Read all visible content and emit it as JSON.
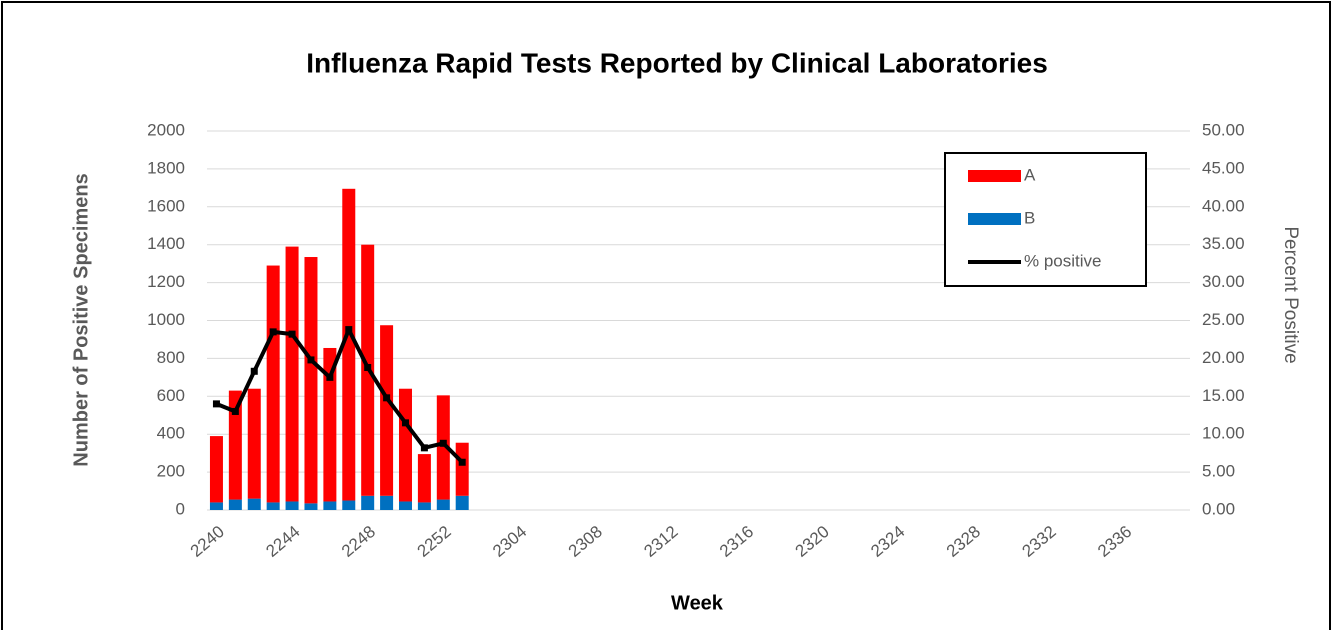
{
  "chart_data": {
    "type": "bar",
    "stacked": true,
    "title": "Influenza Rapid Tests Reported by Clinical Laboratories",
    "x_label": "Week",
    "y_label": "Number of Positive Specimens",
    "y2_label": "Percent Positive",
    "categories": [
      "2240",
      null,
      null,
      null,
      "2244",
      null,
      null,
      null,
      "2248",
      null,
      null,
      null,
      "2252",
      null,
      null,
      null,
      "2304",
      null,
      null,
      null,
      "2308",
      null,
      null,
      null,
      "2312",
      null,
      null,
      null,
      "2316",
      null,
      null,
      null,
      "2320",
      null,
      null,
      null,
      "2324",
      null,
      null,
      null,
      "2328",
      null,
      null,
      null,
      "2332",
      null,
      null,
      null,
      "2336",
      null,
      null,
      null
    ],
    "series": [
      {
        "name": "A",
        "color": "#ff0000",
        "type": "bar",
        "values": [
          350,
          575,
          580,
          1250,
          1345,
          1300,
          810,
          1645,
          1325,
          900,
          595,
          255,
          550,
          280,
          null,
          null,
          null,
          null,
          null,
          null,
          null,
          null,
          null,
          null,
          null,
          null,
          null,
          null,
          null,
          null,
          null,
          null,
          null,
          null,
          null,
          null,
          null,
          null,
          null,
          null,
          null,
          null,
          null,
          null,
          null,
          null,
          null,
          null,
          null,
          null,
          null,
          null
        ]
      },
      {
        "name": "B",
        "color": "#0070c0",
        "type": "bar",
        "values": [
          40,
          55,
          60,
          40,
          45,
          35,
          45,
          50,
          75,
          75,
          45,
          40,
          55,
          75,
          null,
          null,
          null,
          null,
          null,
          null,
          null,
          null,
          null,
          null,
          null,
          null,
          null,
          null,
          null,
          null,
          null,
          null,
          null,
          null,
          null,
          null,
          null,
          null,
          null,
          null,
          null,
          null,
          null,
          null,
          null,
          null,
          null,
          null,
          null,
          null,
          null,
          null
        ]
      },
      {
        "name": "% positive",
        "color": "#000000",
        "type": "line",
        "axis": "y2",
        "values": [
          14.0,
          13.0,
          18.3,
          23.5,
          23.2,
          19.8,
          17.5,
          23.8,
          18.8,
          14.8,
          11.5,
          8.2,
          8.8,
          6.3,
          null,
          null,
          null,
          null,
          null,
          null,
          null,
          null,
          null,
          null,
          null,
          null,
          null,
          null,
          null,
          null,
          null,
          null,
          null,
          null,
          null,
          null,
          null,
          null,
          null,
          null,
          null,
          null,
          null,
          null,
          null,
          null,
          null,
          null,
          null,
          null,
          null,
          null
        ]
      }
    ],
    "ylim": [
      0,
      2000
    ],
    "yticks": [
      0,
      200,
      400,
      600,
      800,
      1000,
      1200,
      1400,
      1600,
      1800,
      2000
    ],
    "y2lim": [
      0,
      50
    ],
    "y2ticks": [
      {
        "value": 0,
        "label": "0.00"
      },
      {
        "value": 5,
        "label": "5.00"
      },
      {
        "value": 10,
        "label": "10.00"
      },
      {
        "value": 15,
        "label": "15.00"
      },
      {
        "value": 20,
        "label": "20.00"
      },
      {
        "value": 25,
        "label": "25.00"
      },
      {
        "value": 30,
        "label": "30.00"
      },
      {
        "value": 35,
        "label": "35.00"
      },
      {
        "value": 40,
        "label": "40.00"
      },
      {
        "value": 45,
        "label": "45.00"
      },
      {
        "value": 50,
        "label": "50.00"
      }
    ],
    "grid": true,
    "legend": "upper right"
  }
}
